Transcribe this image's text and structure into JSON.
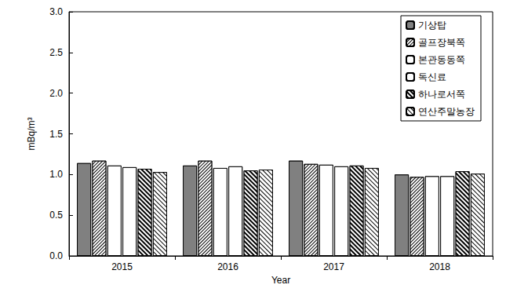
{
  "chart_data": {
    "type": "bar",
    "x_label": "Year",
    "y_label": "mBq/m³",
    "categories": [
      "2015",
      "2016",
      "2017",
      "2018"
    ],
    "series": [
      {
        "name": "기상탑",
        "color": "#808080",
        "values": [
          1.14,
          1.11,
          1.17,
          1.0
        ]
      },
      {
        "name": "골프장북쪽",
        "color": "#ffffff",
        "values": [
          1.17,
          1.17,
          1.13,
          0.97
        ]
      },
      {
        "name": "본관동동쪽",
        "color": "#ffffff",
        "values": [
          1.11,
          1.08,
          1.12,
          0.98
        ]
      },
      {
        "name": "독신료",
        "color": "#ffffff",
        "values": [
          1.09,
          1.1,
          1.1,
          0.98
        ]
      },
      {
        "name": "하나로서쪽",
        "color": "#ffffff",
        "values": [
          1.07,
          1.05,
          1.11,
          1.04
        ]
      },
      {
        "name": "연산주말농장",
        "color": "#ffffff",
        "values": [
          1.03,
          1.06,
          1.08,
          1.01
        ]
      }
    ],
    "ylim": [
      0,
      3
    ],
    "yticks": [
      {
        "value": 0,
        "label": "0.0"
      },
      {
        "value": 0.5,
        "label": "0.5"
      },
      {
        "value": 1,
        "label": "1.0"
      },
      {
        "value": 1.5,
        "label": "1.5"
      },
      {
        "value": 2,
        "label": "2.0"
      },
      {
        "value": 2.5,
        "label": "2.5"
      },
      {
        "value": 3,
        "label": "3.0"
      }
    ],
    "grid": false,
    "legend": "upper right"
  }
}
